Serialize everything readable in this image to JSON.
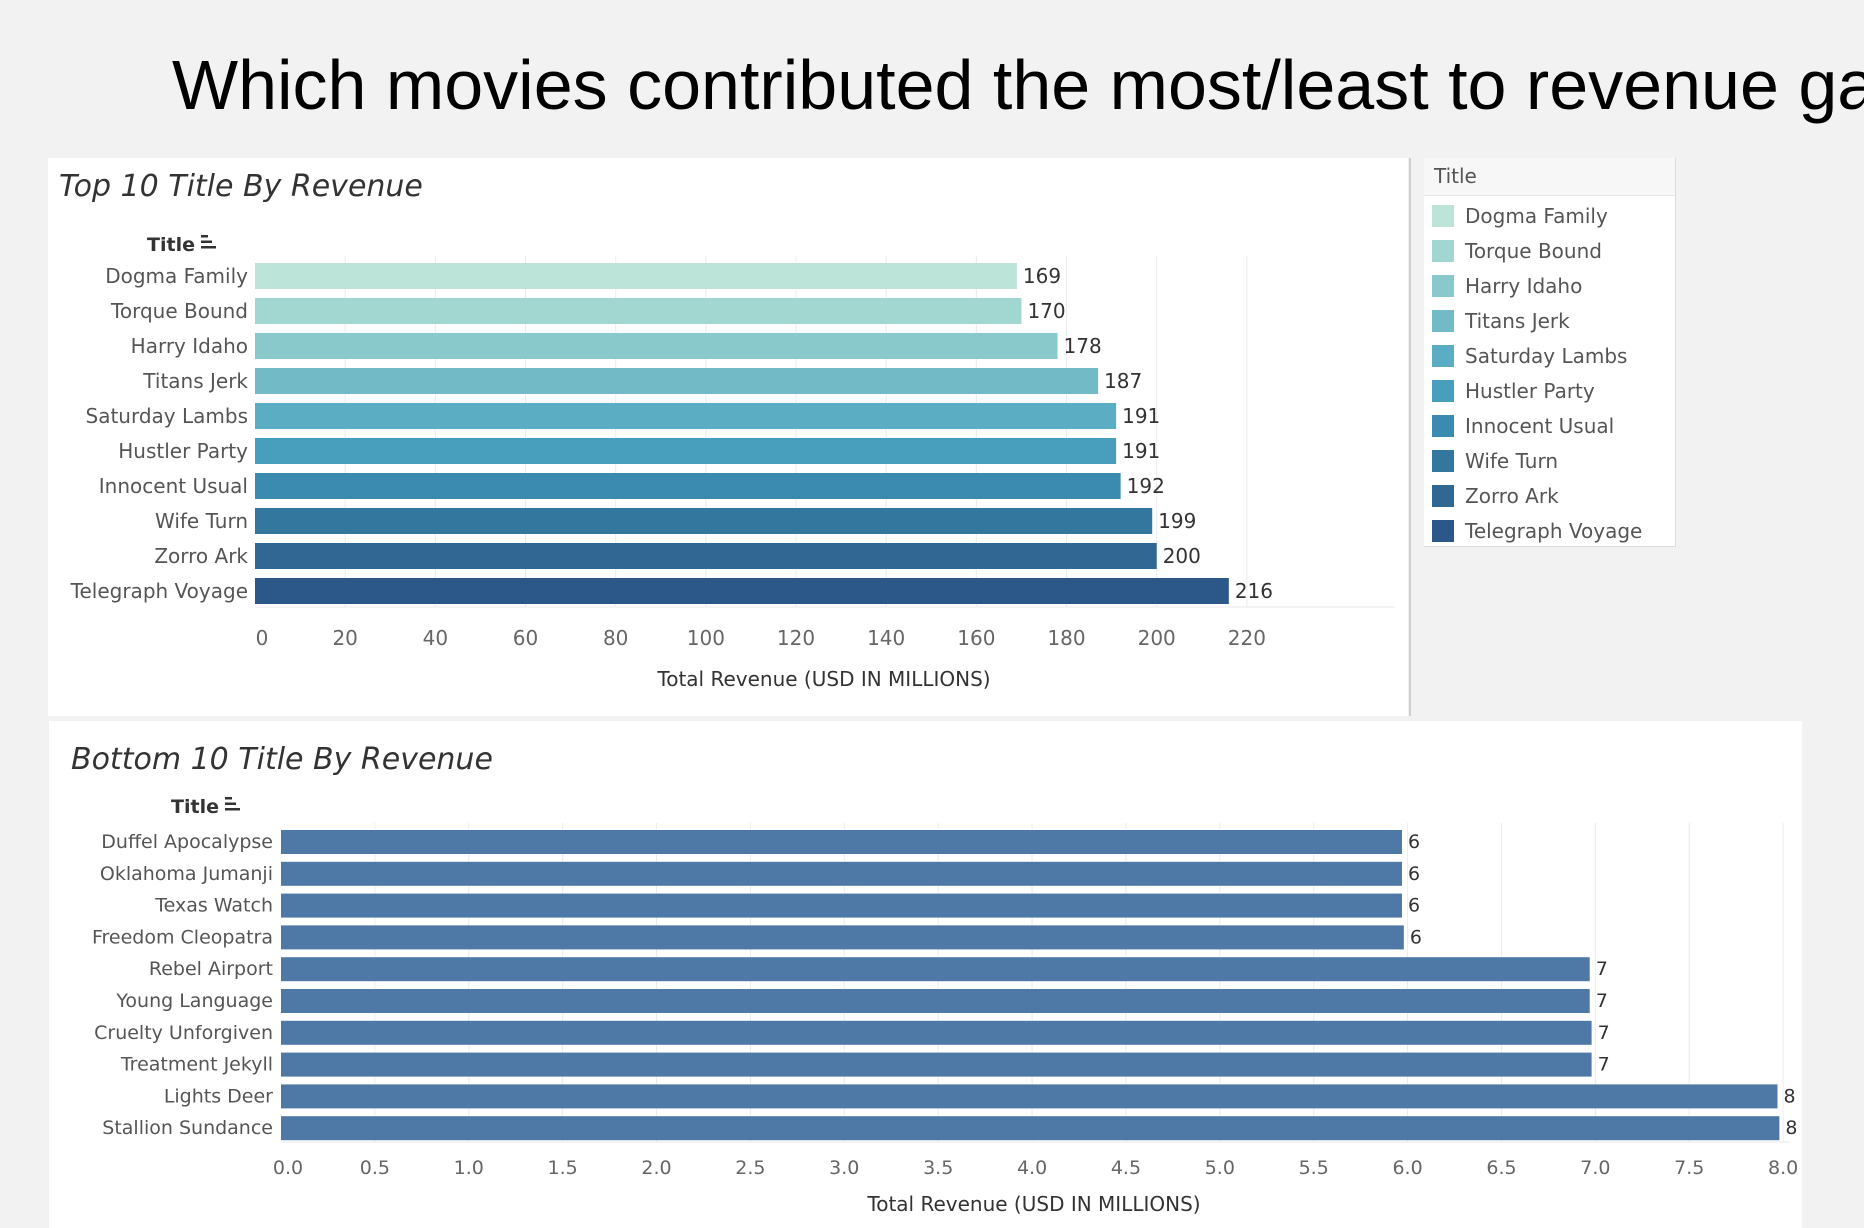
{
  "slide_title": "Which movies contributed the most/least to revenue gain?",
  "colors": {
    "top_bars": [
      "#bde4d9",
      "#a2d6d1",
      "#89c8cb",
      "#71bac6",
      "#5aadc3",
      "#489fbd",
      "#3b8aaf",
      "#34779e",
      "#306793",
      "#2c5889"
    ],
    "bottom_bar": "#4e79a7"
  },
  "legend": {
    "title": "Title",
    "items": [
      "Dogma Family",
      "Torque Bound",
      "Harry Idaho",
      "Titans Jerk",
      "Saturday Lambs",
      "Hustler Party",
      "Innocent Usual",
      "Wife Turn",
      "Zorro Ark",
      "Telegraph Voyage"
    ]
  },
  "chart_data": [
    {
      "type": "bar",
      "orientation": "horizontal",
      "title": "Top 10 Title By Revenue",
      "ylabel": "Title",
      "xlabel": "Total Revenue (USD IN MILLIONS)",
      "categories": [
        "Dogma Family",
        "Torque Bound",
        "Harry Idaho",
        "Titans Jerk",
        "Saturday Lambs",
        "Hustler Party",
        "Innocent Usual",
        "Wife Turn",
        "Zorro Ark",
        "Telegraph Voyage"
      ],
      "values": [
        169,
        170,
        178,
        187,
        191,
        191,
        192,
        199,
        200,
        216
      ],
      "data_labels": [
        "169",
        "170",
        "178",
        "187",
        "191",
        "191",
        "192",
        "199",
        "200",
        "216"
      ],
      "xticks": [
        "0",
        "20",
        "40",
        "60",
        "80",
        "100",
        "120",
        "140",
        "160",
        "180",
        "200",
        "220"
      ],
      "xlim": [
        0,
        236
      ],
      "grid": true,
      "legend_position": "right"
    },
    {
      "type": "bar",
      "orientation": "horizontal",
      "title": "Bottom 10 Title By Revenue",
      "ylabel": "Title",
      "xlabel": "Total Revenue (USD IN MILLIONS)",
      "categories": [
        "Duffel Apocalypse",
        "Oklahoma Jumanji",
        "Texas Watch",
        "Freedom Cleopatra",
        "Rebel Airport",
        "Young Language",
        "Cruelty Unforgiven",
        "Treatment Jekyll",
        "Lights Deer",
        "Stallion Sundance"
      ],
      "values": [
        5.97,
        5.97,
        5.97,
        5.98,
        6.97,
        6.97,
        6.98,
        6.98,
        7.97,
        7.98
      ],
      "data_labels": [
        "6",
        "6",
        "6",
        "6",
        "7",
        "7",
        "7",
        "7",
        "8",
        "8"
      ],
      "xticks": [
        "0.0",
        "0.5",
        "1.0",
        "1.5",
        "2.0",
        "2.5",
        "3.0",
        "3.5",
        "4.0",
        "4.5",
        "5.0",
        "5.5",
        "6.0",
        "6.5",
        "7.0",
        "7.5",
        "8.0"
      ],
      "xlim": [
        0,
        8.5
      ],
      "grid": true
    }
  ]
}
